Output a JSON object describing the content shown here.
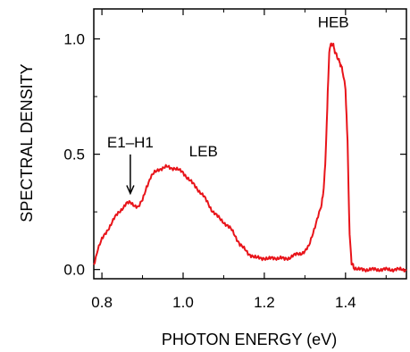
{
  "chart_data": {
    "type": "line",
    "title": "",
    "xlabel": "PHOTON ENERGY (eV)",
    "ylabel": "SPECTRAL DENSITY",
    "xlim": [
      0.78,
      1.55
    ],
    "ylim": [
      -0.04,
      1.13
    ],
    "xticks": [
      0.8,
      1.0,
      1.2,
      1.4
    ],
    "xtick_labels": [
      "0.8",
      "1.0",
      "1.2",
      "1.4"
    ],
    "yticks": [
      0.0,
      0.5,
      1.0
    ],
    "ytick_labels": [
      "0.0",
      "0.5",
      "1.0"
    ],
    "grid": false,
    "line_color": "#e8141a",
    "series": [
      {
        "name": "",
        "x": [
          0.78,
          0.79,
          0.8,
          0.81,
          0.82,
          0.83,
          0.84,
          0.85,
          0.86,
          0.87,
          0.88,
          0.89,
          0.9,
          0.91,
          0.92,
          0.93,
          0.94,
          0.95,
          0.96,
          0.97,
          0.98,
          0.99,
          1.0,
          1.01,
          1.02,
          1.03,
          1.04,
          1.05,
          1.06,
          1.07,
          1.08,
          1.09,
          1.1,
          1.11,
          1.12,
          1.13,
          1.14,
          1.15,
          1.16,
          1.17,
          1.18,
          1.19,
          1.2,
          1.21,
          1.22,
          1.23,
          1.24,
          1.25,
          1.26,
          1.27,
          1.28,
          1.29,
          1.3,
          1.31,
          1.32,
          1.33,
          1.34,
          1.345,
          1.35,
          1.355,
          1.36,
          1.365,
          1.37,
          1.375,
          1.38,
          1.385,
          1.39,
          1.395,
          1.4,
          1.405,
          1.41,
          1.415,
          1.42,
          1.43,
          1.44,
          1.45,
          1.46,
          1.47,
          1.48,
          1.49,
          1.5,
          1.51,
          1.52,
          1.53,
          1.54,
          1.55
        ],
        "values": [
          0.02,
          0.09,
          0.13,
          0.16,
          0.19,
          0.22,
          0.245,
          0.265,
          0.285,
          0.29,
          0.28,
          0.27,
          0.3,
          0.36,
          0.4,
          0.42,
          0.435,
          0.44,
          0.445,
          0.44,
          0.44,
          0.43,
          0.42,
          0.4,
          0.38,
          0.36,
          0.34,
          0.32,
          0.29,
          0.26,
          0.24,
          0.22,
          0.205,
          0.19,
          0.17,
          0.14,
          0.11,
          0.09,
          0.07,
          0.06,
          0.05,
          0.05,
          0.05,
          0.045,
          0.05,
          0.05,
          0.05,
          0.045,
          0.05,
          0.06,
          0.065,
          0.07,
          0.08,
          0.1,
          0.16,
          0.22,
          0.27,
          0.33,
          0.45,
          0.7,
          0.95,
          0.98,
          0.97,
          0.94,
          0.92,
          0.9,
          0.88,
          0.84,
          0.78,
          0.55,
          0.15,
          0.03,
          0.01,
          0.0,
          0.0,
          0.0,
          0.0,
          0.0,
          0.0,
          0.0,
          0.0,
          0.0,
          0.0,
          0.0,
          0.0,
          0.0
        ]
      }
    ],
    "annotations": [
      {
        "text": "HEB",
        "x": 1.37,
        "y": 1.05
      },
      {
        "text": "LEB",
        "x": 1.05,
        "y": 0.49
      },
      {
        "text": "E1–H1",
        "x": 0.87,
        "y": 0.53,
        "arrow_to": [
          0.87,
          0.33
        ]
      }
    ]
  }
}
